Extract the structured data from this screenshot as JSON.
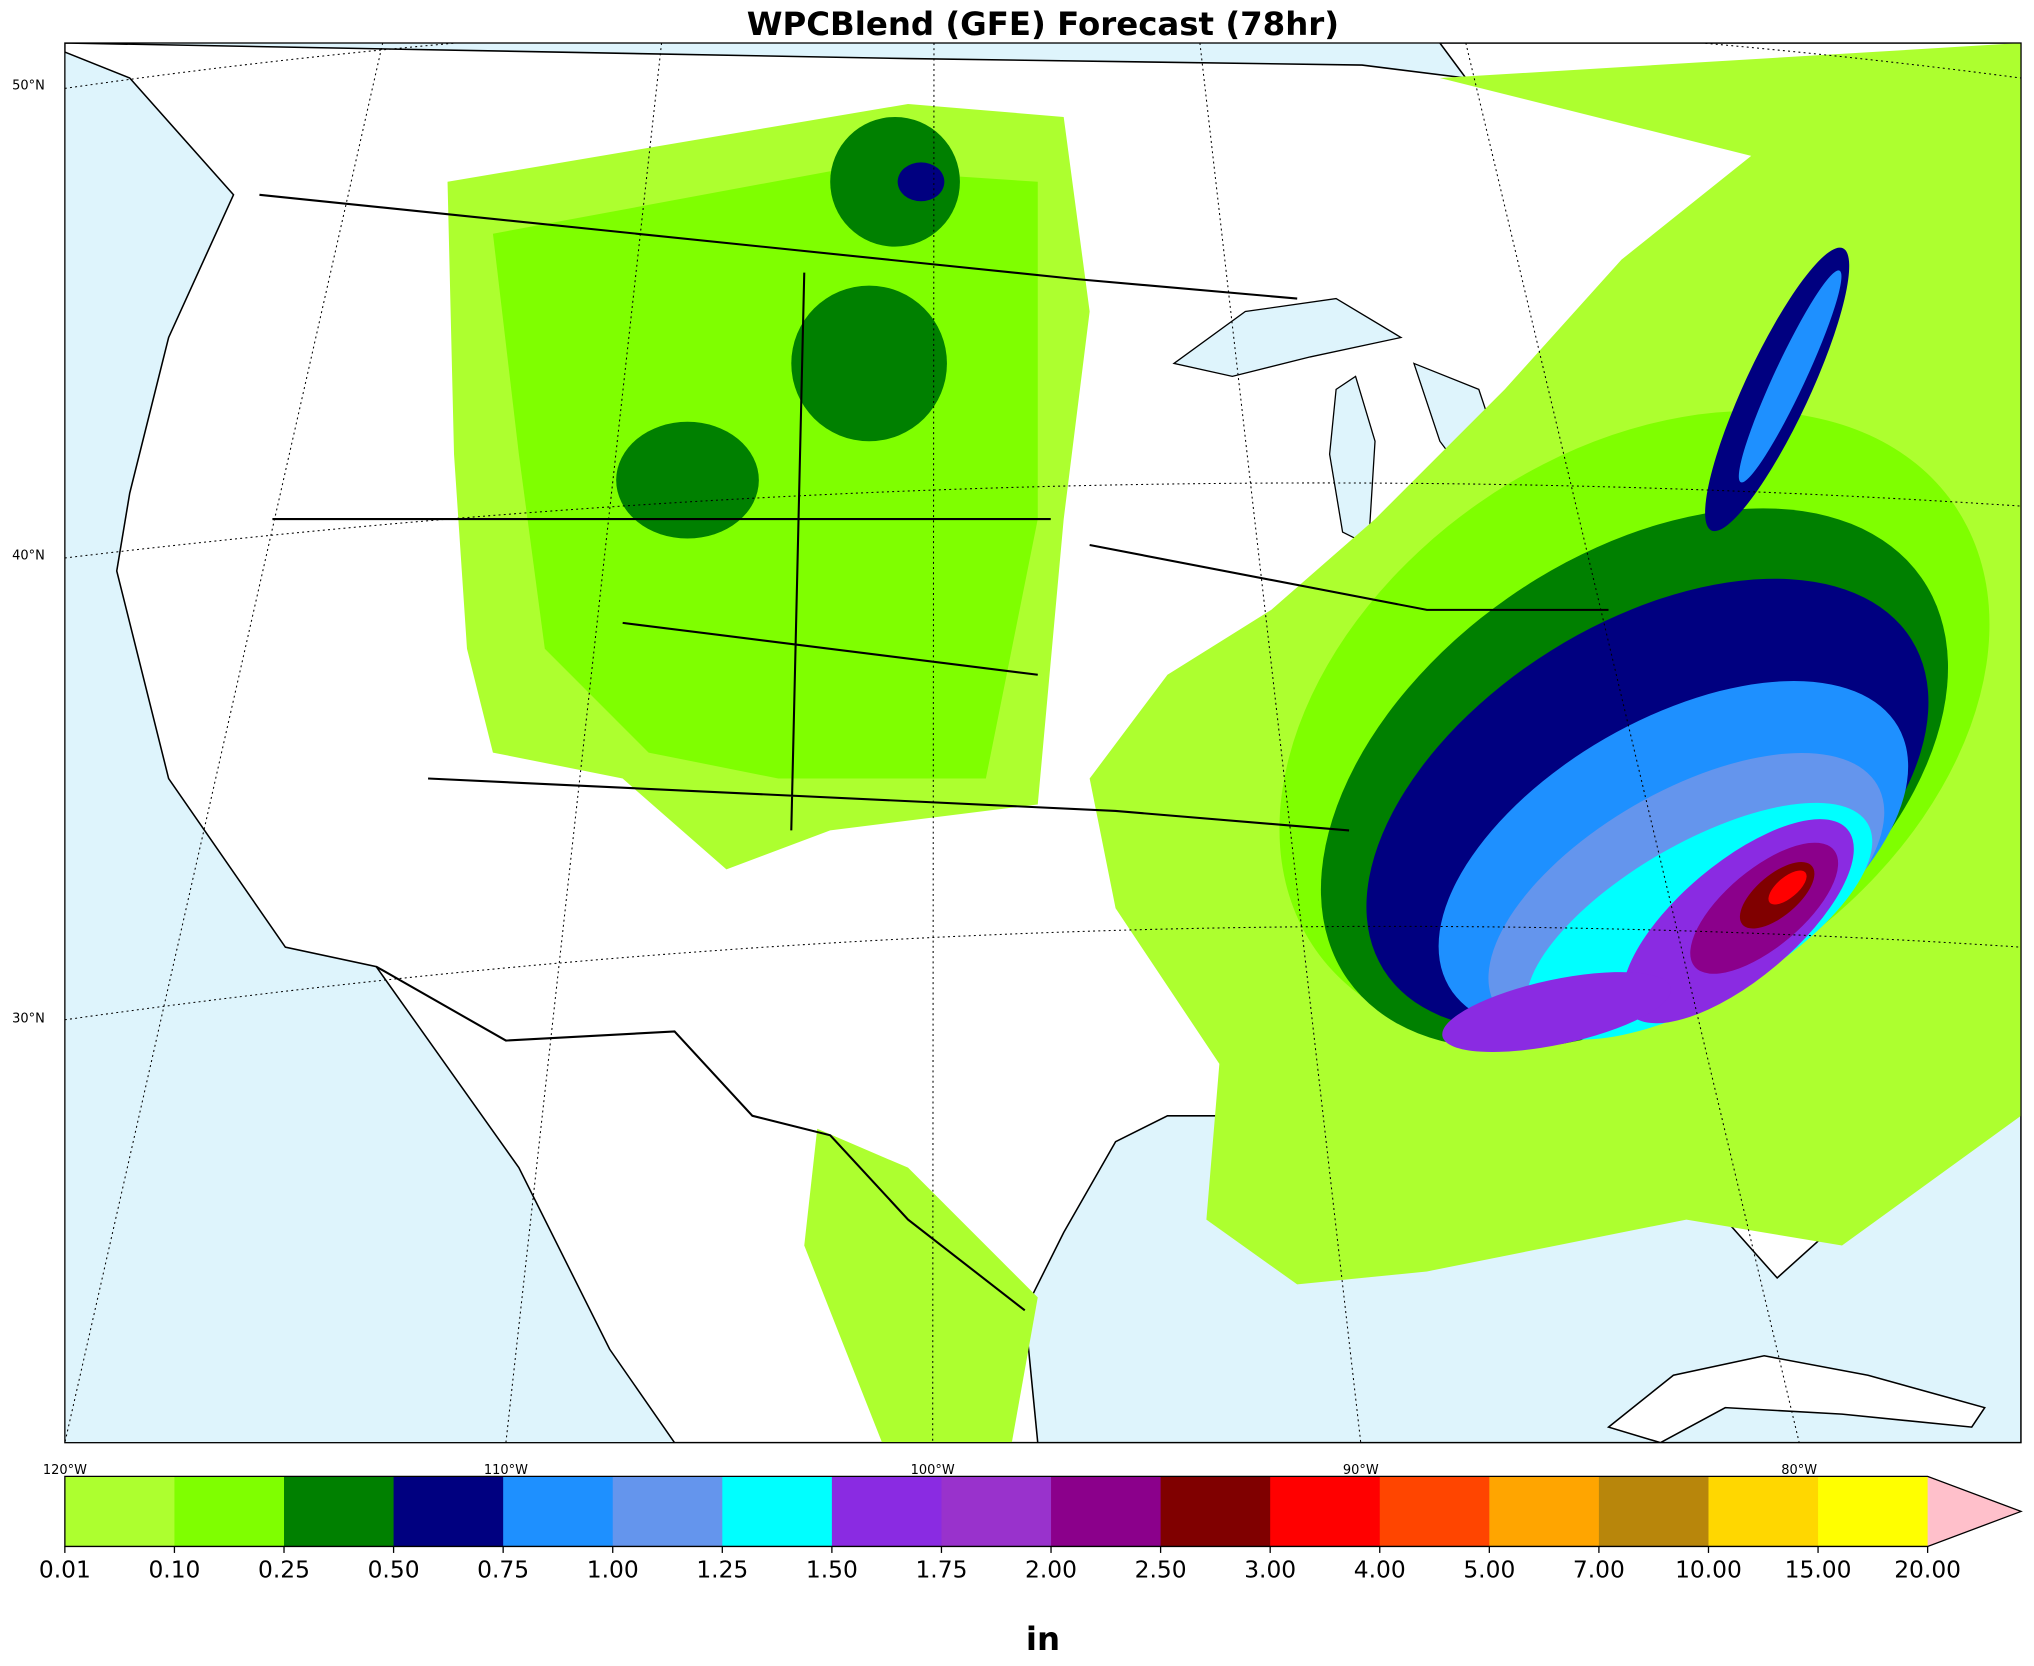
{
  "title": "WPCBlend (GFE) Forecast (78hr)",
  "map": {
    "lat_labels": [
      "50°N",
      "40°N",
      "30°N"
    ],
    "lon_labels": [
      "120°W",
      "110°W",
      "100°W",
      "90°W",
      "80°W"
    ]
  },
  "colorbar": {
    "ticks": [
      "0.01",
      "0.10",
      "0.25",
      "0.50",
      "0.75",
      "1.00",
      "1.25",
      "1.50",
      "1.75",
      "2.00",
      "2.50",
      "3.00",
      "4.00",
      "5.00",
      "7.00",
      "10.00",
      "15.00",
      "20.00"
    ],
    "colors": [
      "#adff2f",
      "#7fff00",
      "#008000",
      "#000080",
      "#1e90ff",
      "#6495ed",
      "#00ffff",
      "#8a2be2",
      "#9932cc",
      "#8b008b",
      "#800000",
      "#ff0000",
      "#ff4500",
      "#ffa500",
      "#b8860b",
      "#ffd700",
      "#ffff00"
    ],
    "extend_color": "#ffc0cb",
    "unit": "in"
  }
}
